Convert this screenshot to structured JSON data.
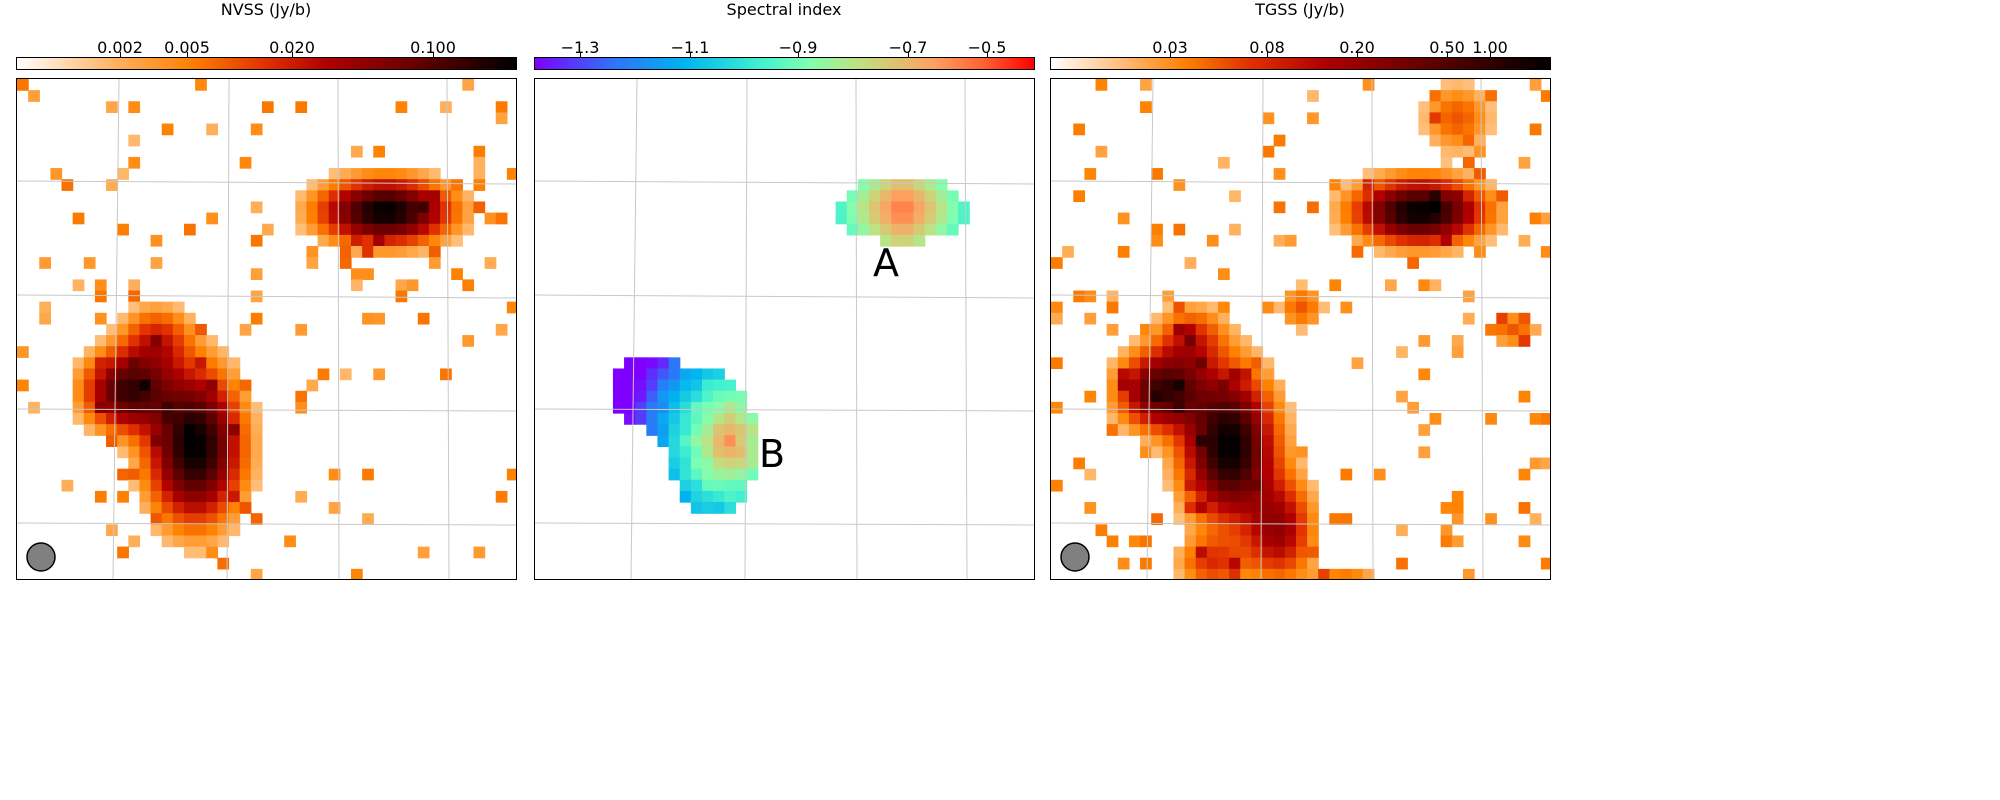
{
  "chart_data": [
    {
      "type": "heatmap",
      "title": "NVSS (Jy/b)",
      "colorbar_ticks": [
        "0.002",
        "0.005",
        "0.020",
        "0.100"
      ],
      "colormap": "white-orange-red-black",
      "beam": true
    },
    {
      "type": "heatmap",
      "title": "Spectral index",
      "colorbar_ticks": [
        "−1.3",
        "−1.1",
        "−0.9",
        "−0.7",
        "−0.5"
      ],
      "colormap": "rainbow",
      "vrange": [
        -1.45,
        -0.4
      ],
      "annotations": [
        "A",
        "B"
      ]
    },
    {
      "type": "heatmap",
      "title": "TGSS (Jy/b)",
      "colorbar_ticks": [
        "0.03",
        "0.08",
        "0.20",
        "0.50",
        "1.00"
      ],
      "colormap": "white-orange-red-black",
      "beam": true
    }
  ],
  "colors": {
    "beam": "#808080",
    "grid": "#c8c8c8"
  }
}
